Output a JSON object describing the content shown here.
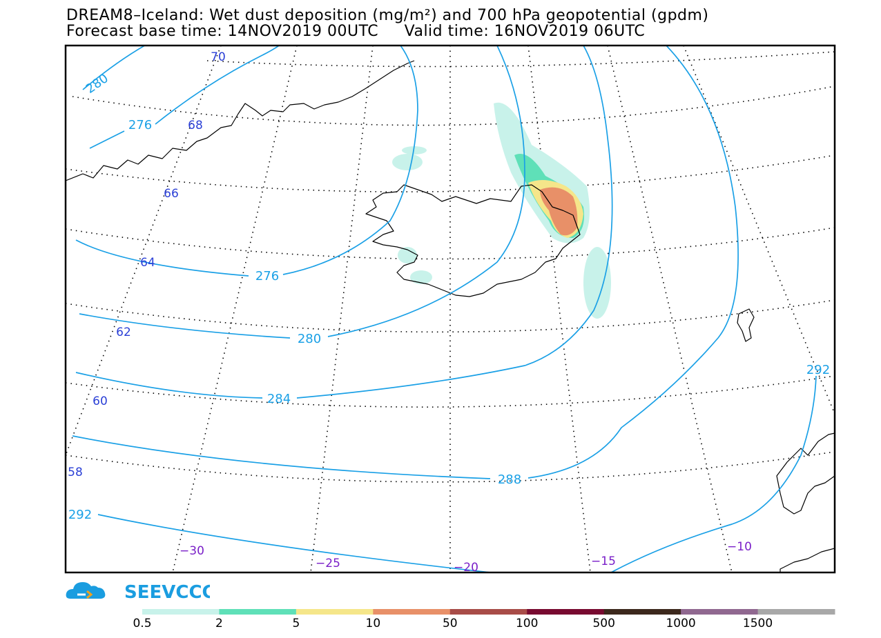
{
  "header": {
    "title_line1": "DREAM8–Iceland: Wet dust deposition (mg/m²) and 700 hPa geopotential (gpdm)",
    "title_line2": "Forecast base time: 14NOV2019 00UTC     Valid time: 16NOV2019 06UTC"
  },
  "map": {
    "contour_labels": [
      {
        "id": "c276",
        "value": "276"
      },
      {
        "id": "c280",
        "value": "280"
      },
      {
        "id": "c284",
        "value": "284"
      },
      {
        "id": "c288",
        "value": "288"
      },
      {
        "id": "c292",
        "value": "292"
      }
    ],
    "latitude_labels": [
      "70",
      "68",
      "66",
      "64",
      "62",
      "60",
      "58"
    ],
    "longitude_labels": [
      "−30",
      "−25",
      "−20",
      "−15",
      "−10"
    ],
    "colors": {
      "contour": "#1aa0e6",
      "lat_label": "#2a3fd6",
      "lon_label": "#7a1fc8"
    }
  },
  "logo": {
    "text": "SEEVCCC",
    "color": "#1a9de0"
  },
  "legend": {
    "colors": [
      "#c8f2ea",
      "#5fe0b8",
      "#f5e68a",
      "#e89068",
      "#a84c48",
      "#780a30",
      "#3c281c",
      "#906890",
      "#a8a8a8"
    ],
    "ticks": [
      "0.5",
      "2",
      "5",
      "10",
      "50",
      "100",
      "500",
      "1000",
      "1500"
    ]
  }
}
